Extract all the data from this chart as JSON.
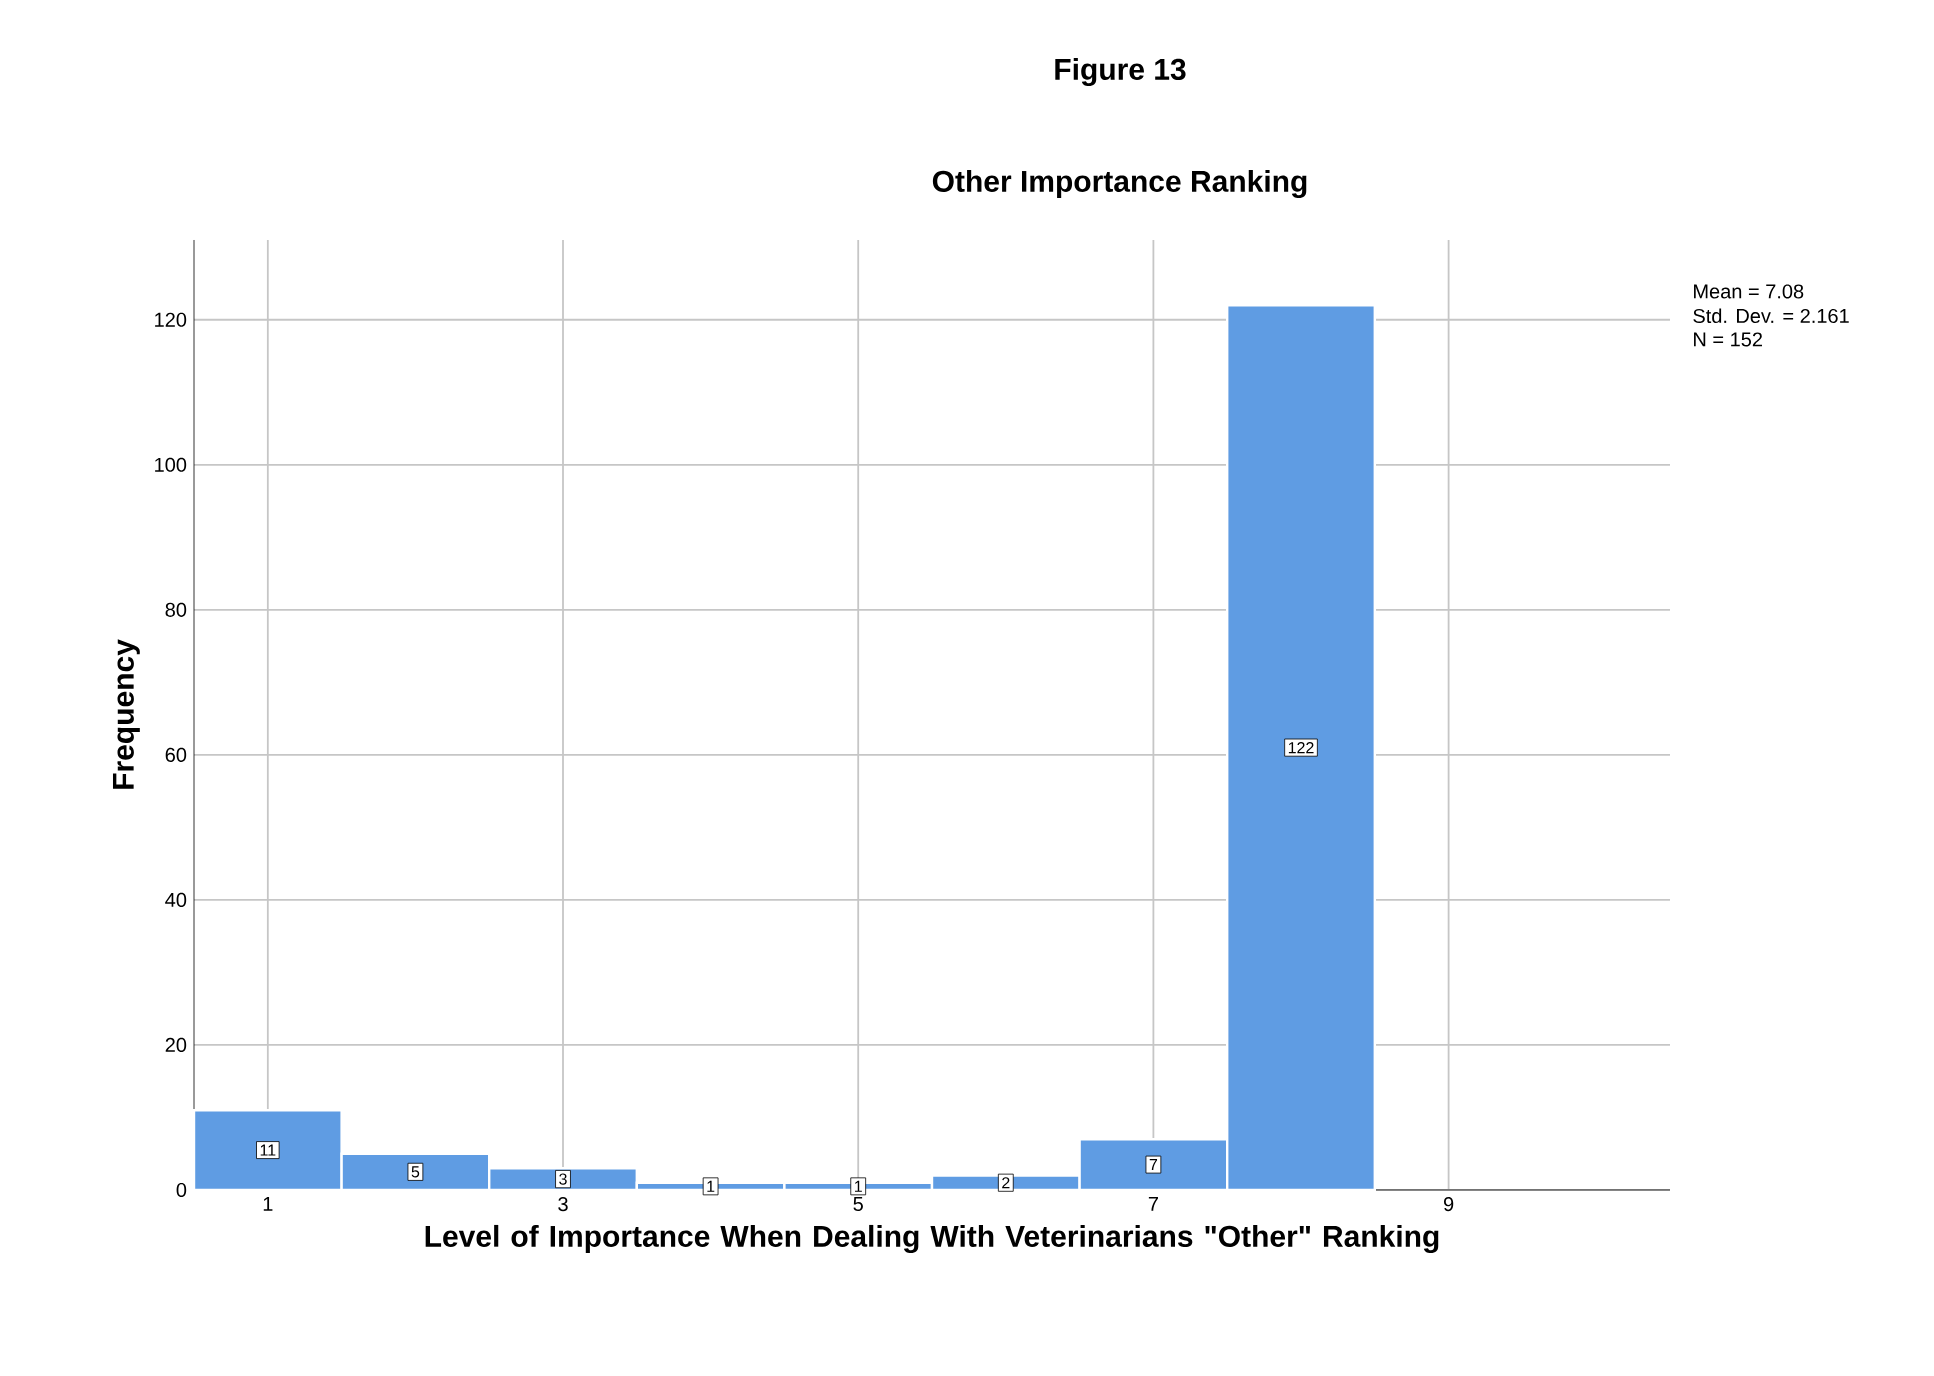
{
  "chart_data": {
    "type": "histogram",
    "title": "Figure 13",
    "subtitle": "Other Importance Ranking",
    "xlabel": "Level of Importance When Dealing With Veterinarians \"Other\" Ranking",
    "ylabel": "Frequency",
    "bins": [
      0.5,
      1.5,
      2.5,
      3.5,
      4.5,
      5.5,
      6.5,
      7.5,
      8.5
    ],
    "values": [
      11,
      5,
      3,
      1,
      1,
      2,
      7,
      122
    ],
    "color": "#5f9ce3",
    "xlim": [
      0.5,
      10.5
    ],
    "xticks": [
      1,
      3,
      5,
      7,
      9
    ],
    "ylim": [
      0,
      131
    ],
    "yticks": [
      0,
      20,
      40,
      60,
      80,
      100,
      120
    ],
    "grid": true,
    "data_labels": true,
    "annotations": [
      "Mean = 7.08",
      "Std. Dev. = 2.161",
      "N = 152"
    ]
  }
}
